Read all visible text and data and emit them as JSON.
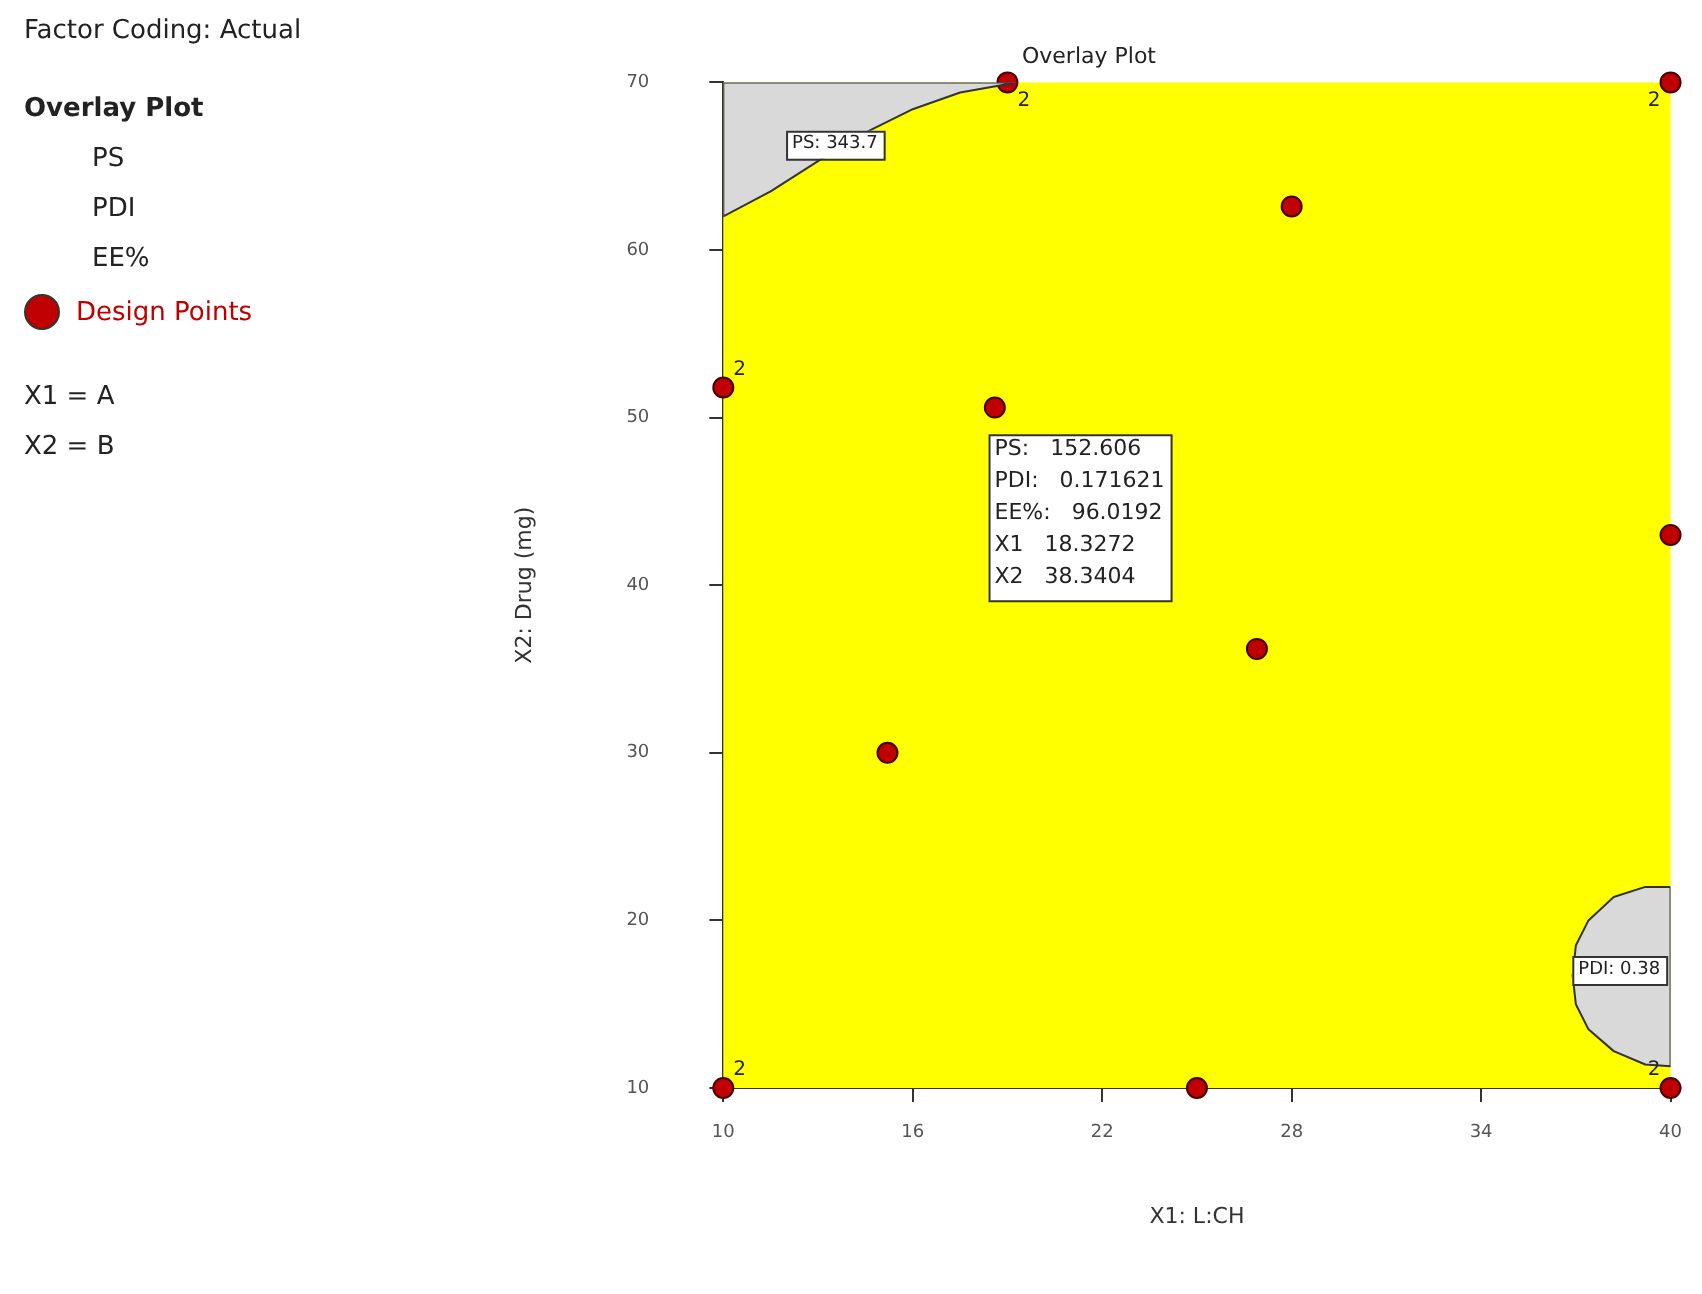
{
  "chart_data": {
    "type": "scatter",
    "title": "Overlay Plot",
    "xlabel": "X1: L:CH",
    "ylabel": "X2: Drug (mg)",
    "legend_title": "Overlay Plot",
    "legend": "left",
    "marker": "circle",
    "grid": false,
    "xlim": [
      10,
      40
    ],
    "xticks": [
      10,
      16,
      22,
      28,
      34,
      40
    ],
    "ylim": [
      10,
      70
    ],
    "yticks": [
      10,
      20,
      30,
      40,
      50,
      60,
      70
    ],
    "bands": [
      {
        "axis": "x",
        "from": 10,
        "to": 40,
        "color": "#ffff00"
      }
    ],
    "series": [
      {
        "type": "area",
        "name": "PS: 343.7",
        "marker": "none",
        "color": "#d9d9d9",
        "x": [
          10,
          11.5,
          13,
          14.5,
          16,
          17.5,
          19.3,
          10,
          10
        ],
        "values": [
          62,
          63.5,
          65.3,
          67,
          68.4,
          69.4,
          70,
          70,
          62
        ]
      },
      {
        "type": "area",
        "name": "PDI: 0.38",
        "marker": "none",
        "color": "#d9d9d9",
        "x": [
          40,
          39.2,
          38.2,
          37.4,
          37,
          36.9,
          37,
          37.4,
          38.2,
          39.2,
          40,
          40
        ],
        "values": [
          22,
          22,
          21.4,
          20,
          18.5,
          16.7,
          15,
          13.5,
          12.2,
          11.4,
          11.3,
          22
        ]
      },
      {
        "name": "Design Points",
        "color": "#c00000",
        "x": [
          19,
          40,
          28,
          10,
          18.6,
          40,
          26.9,
          15.2,
          10,
          25,
          40
        ],
        "values": [
          70,
          70,
          62.6,
          51.8,
          50.6,
          43,
          36.2,
          30,
          10,
          10,
          10
        ]
      }
    ],
    "annotations": [
      "Factor Coding: Actual",
      "PS",
      "PDI",
      "EE%",
      "X1 = A",
      "X2 = B",
      "PS:   152.606\nPDI:   0.171621\nEE%:   96.0192\nX1   18.3272\nX2   38.3404",
      {
        "text": "2",
        "x": 19,
        "y": 70
      },
      {
        "text": "2",
        "x": 40,
        "y": 70
      },
      {
        "text": "2",
        "x": 10,
        "y": 51.8
      },
      {
        "text": "2",
        "x": 10,
        "y": 10
      },
      {
        "text": "2",
        "x": 40,
        "y": 10
      }
    ]
  }
}
